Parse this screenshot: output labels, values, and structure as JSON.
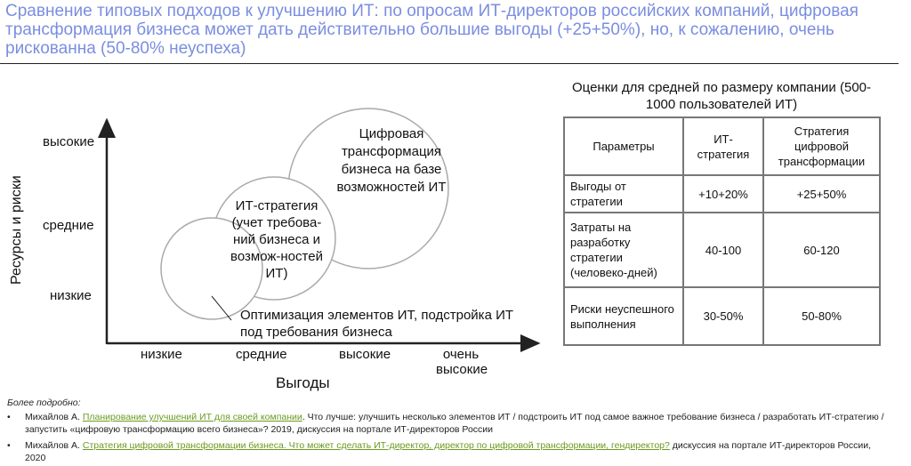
{
  "title": "Сравнение типовых подходов к улучшению ИТ: по опросам ИТ-директоров российских компаний, цифровая трансформация бизнеса может дать действительно большие выгоды (+25+50%), но, к сожалению, очень рискованна (50-80% неуспеха)",
  "diagram": {
    "y_axis_label": "Ресурсы  и риски",
    "y_ticks": [
      "высокие",
      "средние",
      "низкие"
    ],
    "x_axis_label": "Выгоды",
    "x_ticks": [
      "низкие",
      "средние",
      "высокие",
      "очень высокие"
    ],
    "circles": [
      {
        "label": "Оптимизация элементов ИТ, подстройка ИТ под требования бизнеса"
      },
      {
        "label": "ИТ-стратегия (учет требова-ний бизнеса и возмож-ностей ИТ)"
      },
      {
        "label": "Цифровая трансформация бизнеса на базе возможностей ИТ"
      }
    ]
  },
  "table": {
    "caption": "Оценки для средней по размеру компании (500-1000 пользователей ИТ)",
    "headers": [
      "Параметры",
      "ИТ-стратегия",
      "Стратегия цифровой трансформации"
    ],
    "rows": [
      [
        "Выгоды от стратегии",
        "+10+20%",
        "+25+50%"
      ],
      [
        "Затраты на разработку стратегии (человеко-дней)",
        "40-100",
        "60-120"
      ],
      [
        "Риски неуспешного выполнения",
        "30-50%",
        "50-80%"
      ]
    ]
  },
  "footer": {
    "heading": "Более подробно:",
    "refs": [
      {
        "author": "Михайлов А.",
        "link": "Планирование улучшений ИТ для своей компании",
        "text": ". Что лучше: улучшить несколько элементов ИТ / подстроить ИТ под самое важное требование бизнеса / разработать ИТ-стратегию / запустить «цифровую трансформацию всего бизнеса»?  2019, дискуссия на портале ИТ-директоров России"
      },
      {
        "author": "Михайлов А.",
        "link": "Стратегия цифровой трансформации бизнеса. Что может сделать ИТ-директор, директор по цифровой трансформации, гендиректор?",
        "text": " дискуссия на портале ИТ-директоров России, 2020"
      }
    ]
  },
  "colors": {
    "title": "#7a8ee0",
    "link": "#6a9a1e"
  }
}
